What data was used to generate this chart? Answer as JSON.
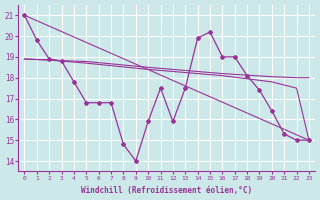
{
  "xlabel": "Windchill (Refroidissement éolien,°C)",
  "bg_color": "#cce8e8",
  "grid_color": "#ffffff",
  "line_color": "#993399",
  "ylim": [
    13.5,
    21.5
  ],
  "xlim": [
    -0.5,
    23.5
  ],
  "yticks": [
    14,
    15,
    16,
    17,
    18,
    19,
    20,
    21
  ],
  "xticks": [
    0,
    1,
    2,
    3,
    4,
    5,
    6,
    7,
    8,
    9,
    10,
    11,
    12,
    13,
    14,
    15,
    16,
    17,
    18,
    19,
    20,
    21,
    22,
    23
  ],
  "line1_x": [
    0,
    1,
    2,
    3,
    4,
    5,
    6,
    7,
    8,
    9,
    10,
    11,
    12,
    13,
    14,
    15,
    16,
    17,
    18,
    19,
    20,
    21,
    22,
    23
  ],
  "line1_y": [
    21.0,
    19.8,
    18.9,
    18.8,
    17.8,
    16.8,
    16.8,
    16.8,
    14.8,
    14.0,
    15.9,
    17.5,
    15.9,
    17.5,
    19.9,
    20.2,
    19.0,
    19.0,
    18.1,
    17.4,
    16.4,
    15.3,
    15.0,
    15.0
  ],
  "line2_x": [
    0,
    23
  ],
  "line2_y": [
    21.0,
    15.0
  ],
  "line3_x": [
    0,
    2,
    3,
    5,
    10,
    14,
    16,
    20,
    22,
    23
  ],
  "line3_y": [
    18.9,
    18.85,
    18.8,
    18.7,
    18.4,
    18.2,
    18.1,
    17.8,
    17.5,
    15.0
  ],
  "line4_x": [
    0,
    2,
    3,
    5,
    10,
    14,
    16,
    20,
    22,
    23
  ],
  "line4_y": [
    18.9,
    18.85,
    18.82,
    18.78,
    18.5,
    18.3,
    18.2,
    18.05,
    18.0,
    18.0
  ]
}
